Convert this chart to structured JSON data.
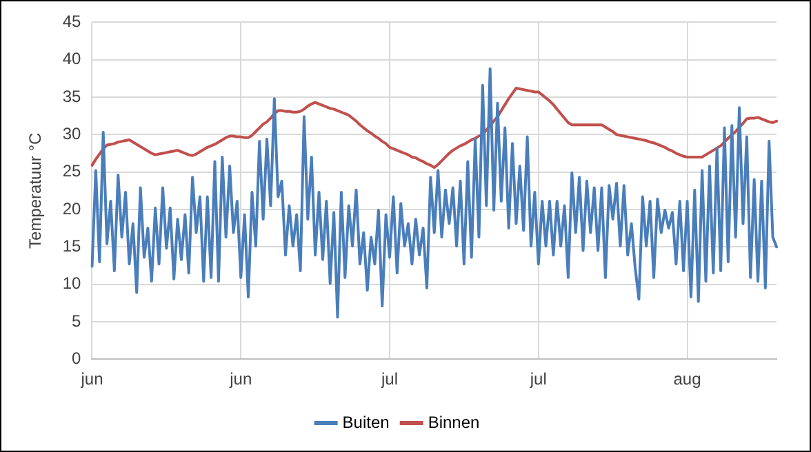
{
  "chart_data": {
    "type": "line",
    "ylabel": "Temperatuur °C",
    "categories": [
      "jun",
      null,
      null,
      null,
      null,
      null,
      null,
      null,
      null,
      null,
      null,
      null,
      null,
      null,
      null,
      null,
      null,
      null,
      null,
      null,
      null,
      null,
      null,
      null,
      null,
      null,
      null,
      null,
      null,
      null,
      null,
      null,
      null,
      null,
      null,
      null,
      null,
      null,
      null,
      null,
      "jun",
      null,
      null,
      null,
      null,
      null,
      null,
      null,
      null,
      null,
      null,
      null,
      null,
      null,
      null,
      null,
      null,
      null,
      null,
      null,
      null,
      null,
      null,
      null,
      null,
      null,
      null,
      null,
      null,
      null,
      null,
      null,
      null,
      null,
      null,
      null,
      null,
      null,
      null,
      null,
      "jul",
      null,
      null,
      null,
      null,
      null,
      null,
      null,
      null,
      null,
      null,
      null,
      null,
      null,
      null,
      null,
      null,
      null,
      null,
      null,
      null,
      null,
      null,
      null,
      null,
      null,
      null,
      null,
      null,
      null,
      null,
      null,
      null,
      null,
      null,
      null,
      null,
      null,
      null,
      null,
      "jul",
      null,
      null,
      null,
      null,
      null,
      null,
      null,
      null,
      null,
      null,
      null,
      null,
      null,
      null,
      null,
      null,
      null,
      null,
      null,
      null,
      null,
      null,
      null,
      null,
      null,
      null,
      null,
      null,
      null,
      null,
      null,
      null,
      null,
      null,
      null,
      null,
      null,
      null,
      null,
      "aug",
      null,
      null,
      null,
      null,
      null,
      null,
      null,
      null,
      null,
      null,
      null,
      null,
      null,
      null,
      null,
      null,
      null,
      null,
      null,
      null,
      null,
      null,
      null,
      null
    ],
    "series": [
      {
        "name": "Buiten",
        "color": "#4a7ebb",
        "values": [
          12.4,
          25.2,
          13,
          30.3,
          15.4,
          21.1,
          11.8,
          24.6,
          16.3,
          22.3,
          12.7,
          18.1,
          8.9,
          22.9,
          13.6,
          17.5,
          10.4,
          20.2,
          12.7,
          22.9,
          14.8,
          20.2,
          10.7,
          18.7,
          13.3,
          19.3,
          11.5,
          24.3,
          16.9,
          21.7,
          10.4,
          21.7,
          10.9,
          26.4,
          10.4,
          27,
          16.3,
          25.8,
          16.9,
          21.1,
          10.9,
          19.3,
          8.3,
          22.3,
          15.1,
          29.1,
          18.7,
          29.4,
          20.5,
          34.8,
          21.7,
          23.8,
          13.9,
          20.5,
          15.1,
          19.3,
          11.8,
          32.4,
          18.7,
          27,
          13.9,
          22.3,
          13.3,
          21.1,
          10.1,
          19.6,
          5.6,
          22.3,
          10.9,
          20.5,
          15.1,
          22.6,
          12.7,
          16.9,
          9.2,
          16.3,
          12.7,
          19.9,
          7.1,
          19.3,
          13.6,
          21.7,
          11.5,
          20.8,
          15.1,
          18.1,
          12.7,
          18.7,
          13.9,
          17.5,
          9.5,
          24.3,
          16.9,
          25.2,
          16.3,
          22.6,
          18.1,
          22.9,
          15.1,
          23.8,
          12.7,
          26.4,
          13.6,
          29.4,
          16.3,
          36.6,
          20.5,
          38.8,
          19.9,
          34.2,
          21.1,
          30.9,
          17.5,
          28.8,
          18.1,
          25.8,
          17.2,
          29.7,
          15.1,
          22.3,
          12.7,
          21.1,
          15.1,
          21.1,
          13.9,
          21.1,
          15.1,
          20.5,
          10.9,
          24.9,
          16.9,
          24.3,
          14.5,
          23.8,
          16.9,
          22.9,
          14.5,
          22.9,
          10.9,
          23.2,
          18.7,
          23.5,
          15.1,
          23.2,
          13.9,
          18.1,
          12.2,
          8,
          21.7,
          15.1,
          21.1,
          10.9,
          21.4,
          16.9,
          19.9,
          17.5,
          19.6,
          12.7,
          21.1,
          11.8,
          21.1,
          8.3,
          22.6,
          7.7,
          25.2,
          10.4,
          25.8,
          11.5,
          28.2,
          11.8,
          30.9,
          13,
          31.2,
          16.3,
          33.6,
          18.1,
          29.7,
          10.9,
          24,
          10.4,
          23.8,
          9.5,
          29.1,
          16.3,
          15
        ]
      },
      {
        "name": "Binnen",
        "color": "#c0504d",
        "values": [
          25.9,
          26.7,
          27.4,
          28.1,
          28.6,
          28.7,
          28.8,
          29.0,
          29.1,
          29.2,
          29.3,
          29.0,
          28.7,
          28.4,
          28.1,
          27.8,
          27.5,
          27.3,
          27.4,
          27.5,
          27.6,
          27.7,
          27.8,
          27.9,
          27.7,
          27.5,
          27.3,
          27.2,
          27.4,
          27.7,
          28.0,
          28.3,
          28.5,
          28.7,
          29.0,
          29.3,
          29.6,
          29.8,
          29.8,
          29.7,
          29.7,
          29.6,
          29.6,
          29.9,
          30.4,
          30.9,
          31.4,
          31.7,
          32.2,
          32.8,
          33.2,
          33.2,
          33.1,
          33.1,
          33.0,
          33.0,
          33.1,
          33.4,
          33.8,
          34.1,
          34.3,
          34.1,
          33.9,
          33.7,
          33.5,
          33.4,
          33.2,
          33.0,
          32.8,
          32.6,
          32.2,
          31.8,
          31.3,
          30.9,
          30.5,
          30.2,
          29.8,
          29.5,
          29.1,
          28.8,
          28.3,
          28.1,
          27.9,
          27.7,
          27.5,
          27.3,
          27.0,
          26.9,
          26.6,
          26.4,
          26.1,
          25.9,
          25.6,
          26.0,
          26.5,
          27.0,
          27.5,
          27.9,
          28.2,
          28.5,
          28.7,
          29.0,
          29.3,
          29.5,
          29.8,
          30.0,
          30.6,
          31.2,
          31.8,
          32.4,
          33.2,
          34.0,
          34.8,
          35.5,
          36.2,
          36.1,
          36.0,
          35.9,
          35.8,
          35.7,
          35.7,
          35.3,
          34.9,
          34.5,
          34.0,
          33.4,
          32.8,
          32.2,
          31.6,
          31.3,
          31.3,
          31.3,
          31.3,
          31.3,
          31.3,
          31.3,
          31.3,
          31.3,
          31.0,
          30.7,
          30.4,
          30.0,
          29.9,
          29.8,
          29.7,
          29.6,
          29.5,
          29.4,
          29.3,
          29.2,
          29.0,
          28.9,
          28.7,
          28.5,
          28.3,
          28.0,
          27.8,
          27.5,
          27.3,
          27.1,
          27.0,
          27.0,
          27.0,
          27.0,
          27.0,
          27.3,
          27.6,
          27.9,
          28.2,
          28.5,
          29.0,
          29.5,
          30.0,
          30.4,
          31.0,
          31.5,
          32.1,
          32.2,
          32.2,
          32.3,
          32.1,
          31.9,
          31.7,
          31.6,
          31.8
        ]
      }
    ],
    "ylim": [
      0,
      45
    ],
    "yticks": [
      0,
      5,
      10,
      15,
      20,
      25,
      30,
      35,
      40,
      45
    ],
    "grid": true,
    "legend": "bottom",
    "marker": "none",
    "line_style": "solid"
  }
}
